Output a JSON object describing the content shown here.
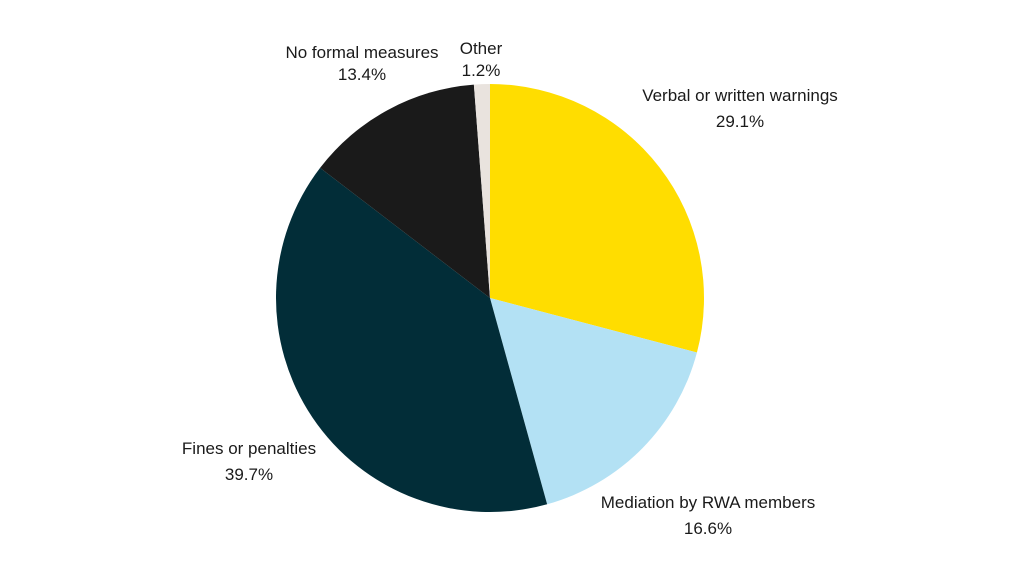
{
  "chart_data": {
    "type": "pie",
    "title": "",
    "start_angle_deg": 0,
    "direction": "clockwise",
    "legend": "none",
    "slices": [
      {
        "label": "Verbal or written warnings",
        "value": 29.1,
        "value_label": "29.1%",
        "color": "#FFDD00"
      },
      {
        "label": "Mediation by RWA members",
        "value": 16.6,
        "value_label": "16.6%",
        "color": "#B3E1F4"
      },
      {
        "label": "Fines or penalties",
        "value": 39.7,
        "value_label": "39.7%",
        "color": "#022D38"
      },
      {
        "label": "No formal measures",
        "value": 13.4,
        "value_label": "13.4%",
        "color": "#1A1A1A"
      },
      {
        "label": "Other",
        "value": 1.2,
        "value_label": "1.2%",
        "color": "#E9E3DE"
      }
    ]
  }
}
